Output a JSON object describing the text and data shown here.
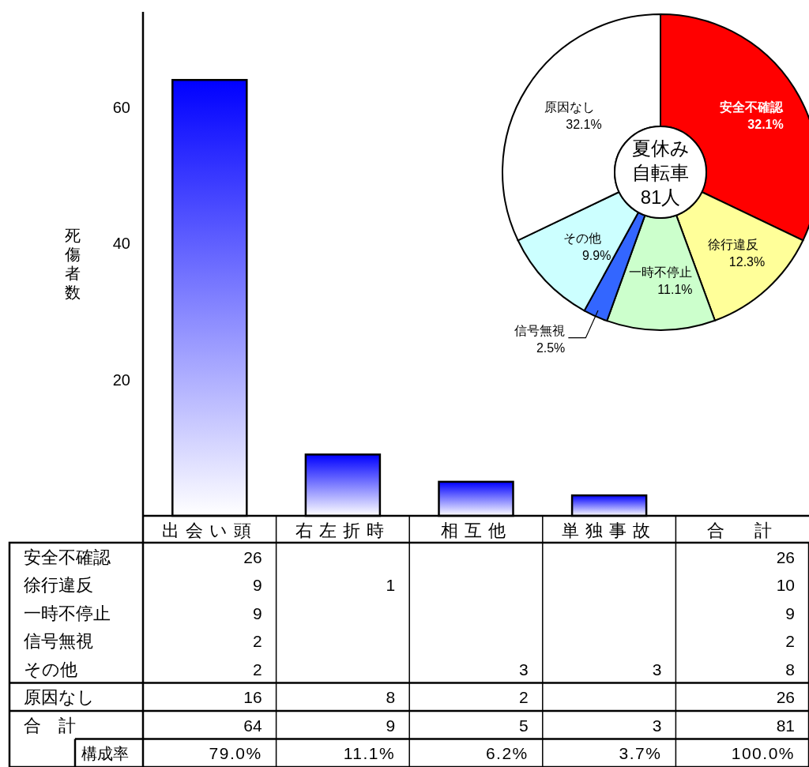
{
  "chart_data": [
    {
      "type": "bar",
      "ylabel": "死傷者数",
      "categories": [
        "出会い頭",
        "右左折時",
        "相互他",
        "単独事故",
        "合　計"
      ],
      "values": [
        64,
        9,
        5,
        3,
        null
      ],
      "color": "#0000ff",
      "ylim": [
        0,
        74
      ],
      "yticks": [
        20,
        40,
        60
      ]
    },
    {
      "type": "donut",
      "categories": [
        "安全不確認",
        "徐行違反",
        "一時不停止",
        "信号無視",
        "その他",
        "原因なし"
      ],
      "values": [
        32.1,
        12.3,
        11.1,
        2.5,
        9.9,
        32.1
      ],
      "colors": [
        "#ff0000",
        "#ffff99",
        "#ccffcc",
        "#3366ff",
        "#ccffff",
        "#ffffff"
      ],
      "value_labels": [
        "32.1%",
        "12.3%",
        "11.1%",
        "2.5%",
        "9.9%",
        "32.1%"
      ],
      "annotations": [
        "夏休み",
        "自転車",
        "81人"
      ]
    },
    {
      "type": "heatmap",
      "categories": [
        "出会い頭",
        "右左折時",
        "相互他",
        "単独事故",
        "合　計"
      ],
      "y_categories": [
        "安全不確認",
        "徐行違反",
        "一時不停止",
        "信号無視",
        "その他",
        "原因なし",
        "合　計",
        "構成率"
      ],
      "cells": [
        [
          26,
          null,
          null,
          null,
          26
        ],
        [
          9,
          1,
          null,
          null,
          10
        ],
        [
          9,
          null,
          null,
          null,
          9
        ],
        [
          2,
          null,
          null,
          null,
          2
        ],
        [
          2,
          null,
          3,
          3,
          8
        ],
        [
          16,
          8,
          2,
          null,
          26
        ],
        [
          64,
          9,
          5,
          3,
          81
        ],
        [
          79.0,
          11.1,
          6.2,
          3.7,
          100.0
        ]
      ],
      "cell_labels": [
        [
          "26",
          null,
          null,
          null,
          "26"
        ],
        [
          "9",
          "1",
          null,
          null,
          "10"
        ],
        [
          "9",
          null,
          null,
          null,
          "9"
        ],
        [
          "2",
          null,
          null,
          null,
          "2"
        ],
        [
          "2",
          null,
          "3",
          "3",
          "8"
        ],
        [
          "16",
          "8",
          "2",
          null,
          "26"
        ],
        [
          "64",
          "9",
          "5",
          "3",
          "81"
        ],
        [
          "79.0%",
          "11.1%",
          "6.2%",
          "3.7%",
          "100.0%"
        ]
      ],
      "tick_labels": "y"
    }
  ]
}
